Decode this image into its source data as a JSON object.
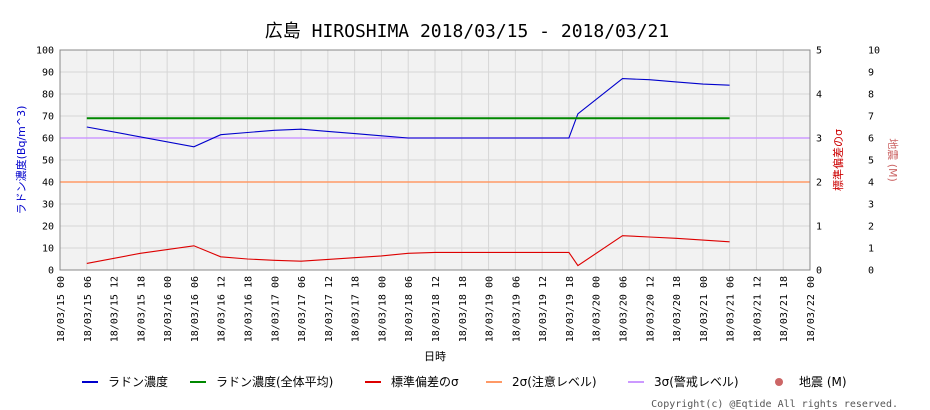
{
  "chart_data": {
    "type": "line",
    "title": "広島 HIROSHIMA 2018/03/15 - 2018/03/21",
    "xlabel": "日時",
    "ylabel_left": "ラドン濃度(Bq/m^3)",
    "ylabel_right1": "標準偏差のσ",
    "ylabel_right2": "地震 (M)",
    "ylim_left": [
      0,
      100
    ],
    "ylim_right1": [
      0,
      5
    ],
    "ylim_right2": [
      0,
      10
    ],
    "yticks_left": [
      "0",
      "10",
      "20",
      "30",
      "40",
      "50",
      "60",
      "70",
      "80",
      "90",
      "100"
    ],
    "yticks_right1": [
      "0",
      "1",
      "2",
      "3",
      "4",
      "5"
    ],
    "yticks_right2": [
      "0",
      "1",
      "2",
      "3",
      "4",
      "5",
      "6",
      "7",
      "8",
      "9",
      "10"
    ],
    "x_tick_labels": [
      "18/03/15 00",
      "18/03/15 06",
      "18/03/15 12",
      "18/03/15 18",
      "18/03/16 00",
      "18/03/16 06",
      "18/03/16 12",
      "18/03/16 18",
      "18/03/17 00",
      "18/03/17 06",
      "18/03/17 12",
      "18/03/17 18",
      "18/03/18 00",
      "18/03/18 06",
      "18/03/18 12",
      "18/03/18 18",
      "18/03/19 00",
      "18/03/19 06",
      "18/03/19 12",
      "18/03/19 18",
      "18/03/20 00",
      "18/03/20 06",
      "18/03/20 12",
      "18/03/20 18",
      "18/03/21 00",
      "18/03/21 06",
      "18/03/21 12",
      "18/03/21 18",
      "18/03/22 00"
    ],
    "grid": true,
    "legend_position": "bottom",
    "series": [
      {
        "name": "ラドン濃度",
        "color": "#0000cc",
        "axis": "left",
        "x": [
          "18/03/15 06",
          "18/03/16 06",
          "18/03/16 12",
          "18/03/16 18",
          "18/03/17 00",
          "18/03/17 06",
          "18/03/17 12",
          "18/03/17 18",
          "18/03/18 00",
          "18/03/18 06",
          "18/03/18 12",
          "18/03/18 18",
          "18/03/19 00",
          "18/03/19 06",
          "18/03/19 12",
          "18/03/19 18",
          "18/03/19 20",
          "18/03/20 06",
          "18/03/20 12",
          "18/03/20 18",
          "18/03/21 00",
          "18/03/21 06"
        ],
        "values": [
          65,
          56,
          61.5,
          62.5,
          63.5,
          64,
          63,
          62,
          61,
          60,
          60,
          60,
          60,
          60,
          60,
          60,
          71,
          87,
          86.5,
          85.5,
          84.5,
          84
        ]
      },
      {
        "name": "ラドン濃度(全体平均)",
        "color": "#008800",
        "axis": "left",
        "x": [
          "18/03/15 06",
          "18/03/21 06"
        ],
        "values": [
          69,
          69
        ]
      },
      {
        "name": "標準偏差のσ",
        "color": "#dd0000",
        "axis": "right1",
        "x": [
          "18/03/15 06",
          "18/03/15 18",
          "18/03/16 06",
          "18/03/16 12",
          "18/03/16 18",
          "18/03/17 00",
          "18/03/17 06",
          "18/03/17 12",
          "18/03/17 18",
          "18/03/18 00",
          "18/03/18 06",
          "18/03/18 12",
          "18/03/18 18",
          "18/03/19 00",
          "18/03/19 06",
          "18/03/19 12",
          "18/03/19 18",
          "18/03/19 20",
          "18/03/20 06",
          "18/03/20 12",
          "18/03/20 18",
          "18/03/21 00",
          "18/03/21 06"
        ],
        "values": [
          0.15,
          0.38,
          0.55,
          0.3,
          0.25,
          0.22,
          0.2,
          0.24,
          0.28,
          0.32,
          0.38,
          0.4,
          0.4,
          0.4,
          0.4,
          0.4,
          0.4,
          0.1,
          0.78,
          0.75,
          0.72,
          0.68,
          0.64
        ]
      },
      {
        "name": "2σ(注意レベル)",
        "color": "#ff9966",
        "axis": "left",
        "level": 40
      },
      {
        "name": "3σ(警戒レベル)",
        "color": "#cc99ff",
        "axis": "left",
        "level": 60
      },
      {
        "name": "地震 (M)",
        "color": "#cc6666",
        "axis": "right2",
        "marker": "dot",
        "values": []
      }
    ]
  },
  "footer": {
    "copyright": "Copyright(c) @Eqtide All rights reserved."
  }
}
